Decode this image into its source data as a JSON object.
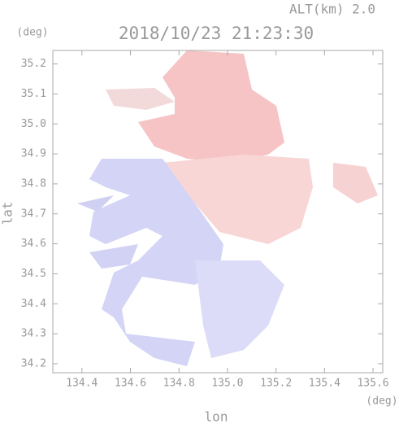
{
  "chart_data": {
    "type": "map",
    "title": "2018/10/23 21:23:30",
    "subtitle": "ALT(km) 2.0",
    "x_label": "lon",
    "x_unit": "(deg)",
    "y_label": "lat",
    "y_unit": "(deg)",
    "xlim": [
      134.28,
      135.64
    ],
    "ylim": [
      34.17,
      35.245
    ],
    "xticks": [
      134.4,
      134.6,
      134.8,
      {
        "value": 135.0,
        "label": "135.0"
      },
      135.2,
      135.4,
      135.6
    ],
    "yticks": [
      34.2,
      34.3,
      34.4,
      34.5,
      34.6,
      34.7,
      34.8,
      34.9,
      {
        "value": 35.0,
        "label": "35.0"
      },
      35.1,
      35.2
    ]
  }
}
